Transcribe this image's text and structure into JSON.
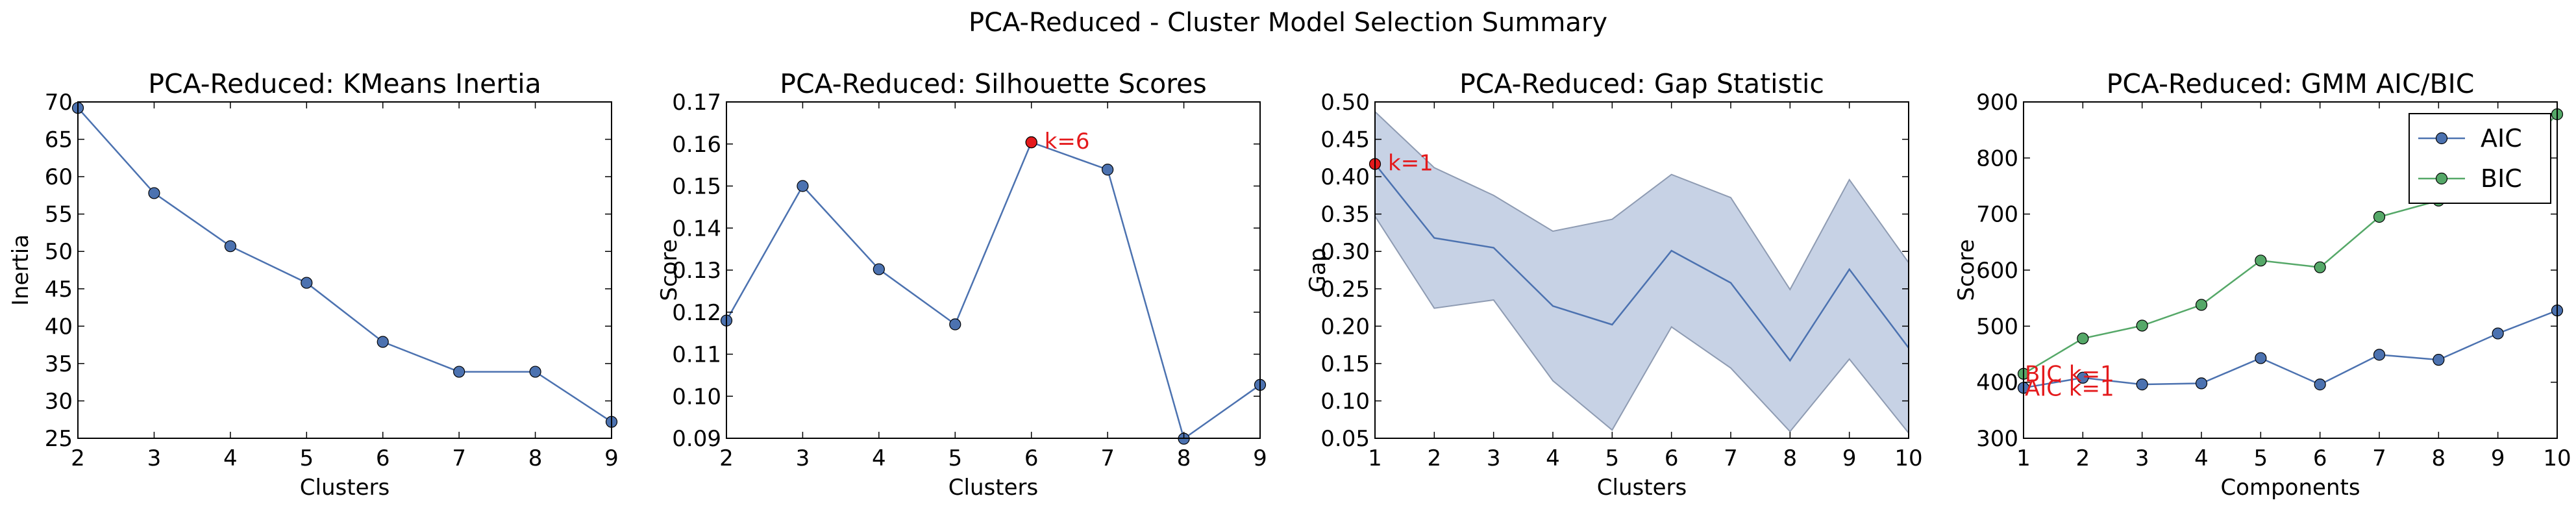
{
  "figure": {
    "suptitle": "PCA-Reduced - Cluster Model Selection Summary"
  },
  "colors": {
    "blue": "#4c72b0",
    "green": "#55a868",
    "red": "#e41a1c",
    "band": "#c7d2e5"
  },
  "chart_data": [
    {
      "type": "line",
      "title": "PCA-Reduced: KMeans Inertia",
      "xlabel": "Clusters",
      "ylabel": "Inertia",
      "xlim": [
        2,
        9
      ],
      "ylim": [
        25,
        70
      ],
      "xticks": [
        2,
        3,
        4,
        5,
        6,
        7,
        8,
        9
      ],
      "yticks": [
        25,
        30,
        35,
        40,
        45,
        50,
        55,
        60,
        65,
        70
      ],
      "series": [
        {
          "x": [
            2,
            3,
            4,
            5,
            6,
            7,
            8,
            9
          ],
          "values": [
            69.2,
            57.8,
            50.7,
            45.8,
            37.9,
            33.9,
            33.9,
            27.2
          ],
          "color": "#4c72b0"
        }
      ]
    },
    {
      "type": "line",
      "title": "PCA-Reduced: Silhouette Scores",
      "xlabel": "Clusters",
      "ylabel": "Score",
      "xlim": [
        2,
        9
      ],
      "ylim": [
        0.09,
        0.17
      ],
      "xticks": [
        2,
        3,
        4,
        5,
        6,
        7,
        8,
        9
      ],
      "yticks": [
        0.09,
        0.1,
        0.11,
        0.12,
        0.13,
        0.14,
        0.15,
        0.16,
        0.17
      ],
      "ytick_labels": [
        "0.09",
        "0.10",
        "0.11",
        "0.12",
        "0.13",
        "0.14",
        "0.15",
        "0.16",
        "0.17"
      ],
      "series": [
        {
          "x": [
            2,
            3,
            4,
            5,
            6,
            7,
            8,
            9
          ],
          "values": [
            0.118,
            0.15,
            0.1302,
            0.1171,
            0.1604,
            0.1539,
            0.0899,
            0.1027
          ],
          "color": "#4c72b0"
        }
      ],
      "highlight": {
        "x": 6,
        "y": 0.1604,
        "label": "k=6"
      }
    },
    {
      "type": "area",
      "title": "PCA-Reduced: Gap Statistic",
      "xlabel": "Clusters",
      "ylabel": "Gap",
      "xlim": [
        1,
        10
      ],
      "ylim": [
        0.05,
        0.5
      ],
      "xticks": [
        1,
        2,
        3,
        4,
        5,
        6,
        7,
        8,
        9,
        10
      ],
      "yticks": [
        0.05,
        0.1,
        0.15,
        0.2,
        0.25,
        0.3,
        0.35,
        0.4,
        0.45,
        0.5
      ],
      "ytick_labels": [
        "0.05",
        "0.10",
        "0.15",
        "0.20",
        "0.25",
        "0.30",
        "0.35",
        "0.40",
        "0.45",
        "0.50"
      ],
      "series": [
        {
          "x": [
            1,
            2,
            3,
            4,
            5,
            6,
            7,
            8,
            9,
            10
          ],
          "values": [
            0.417,
            0.318,
            0.305,
            0.227,
            0.202,
            0.301,
            0.258,
            0.154,
            0.276,
            0.171
          ],
          "color": "#4c72b0"
        }
      ],
      "band_upper": [
        0.487,
        0.412,
        0.375,
        0.327,
        0.343,
        0.403,
        0.372,
        0.249,
        0.396,
        0.285
      ],
      "band_lower": [
        0.347,
        0.224,
        0.235,
        0.127,
        0.061,
        0.199,
        0.144,
        0.059,
        0.156,
        0.057
      ],
      "highlight": {
        "x": 1,
        "y": 0.417,
        "label": "k=1"
      }
    },
    {
      "type": "line",
      "title": "PCA-Reduced: GMM AIC/BIC",
      "xlabel": "Components",
      "ylabel": "Score",
      "xlim": [
        1,
        10
      ],
      "ylim": [
        300,
        900
      ],
      "xticks": [
        1,
        2,
        3,
        4,
        5,
        6,
        7,
        8,
        9,
        10
      ],
      "yticks": [
        300,
        400,
        500,
        600,
        700,
        800,
        900
      ],
      "legend": "top-right",
      "series": [
        {
          "name": "AIC",
          "x": [
            1,
            2,
            3,
            4,
            5,
            6,
            7,
            8,
            9,
            10
          ],
          "values": [
            390,
            408,
            396,
            398,
            443,
            396,
            449,
            440,
            487,
            528
          ],
          "color": "#4c72b0"
        },
        {
          "name": "BIC",
          "x": [
            1,
            2,
            3,
            4,
            5,
            6,
            7,
            8,
            9,
            10
          ],
          "values": [
            415,
            478,
            501,
            538,
            617,
            605,
            695,
            724,
            771,
            878
          ],
          "color": "#55a868"
        }
      ],
      "annotations": [
        {
          "x": 1,
          "y": 415,
          "label": "BIC k=1"
        },
        {
          "x": 1,
          "y": 390,
          "label": "AIC k=1"
        }
      ]
    }
  ]
}
